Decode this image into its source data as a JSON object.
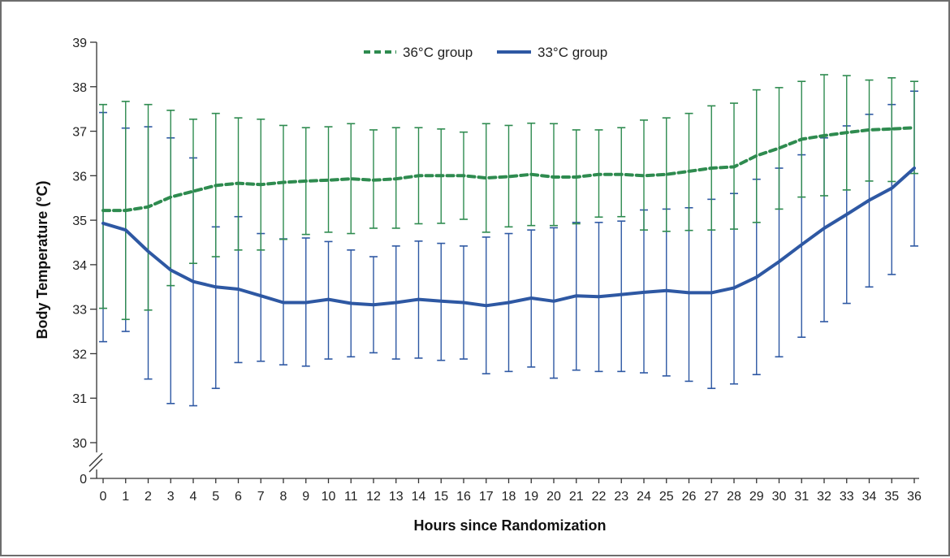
{
  "chart_data": {
    "type": "line",
    "xlabel": "Hours since Randomization",
    "ylabel": "Body Temperature (°C)",
    "x": [
      0,
      1,
      2,
      3,
      4,
      5,
      6,
      7,
      8,
      9,
      10,
      11,
      12,
      13,
      14,
      15,
      16,
      17,
      18,
      19,
      20,
      21,
      22,
      23,
      24,
      25,
      26,
      27,
      28,
      29,
      30,
      31,
      32,
      33,
      34,
      35,
      36
    ],
    "xlim": [
      0,
      36
    ],
    "ylim": [
      30,
      39
    ],
    "y_break": true,
    "y_ticks": [
      30,
      31,
      32,
      33,
      34,
      35,
      36,
      37,
      38,
      39
    ],
    "y_zero_label": "0",
    "legend_position": "top-center",
    "series": [
      {
        "name": "36°C group",
        "color": "#2e8b4f",
        "line_style": "dashed",
        "mean": [
          35.22,
          35.22,
          35.3,
          35.52,
          35.65,
          35.78,
          35.83,
          35.8,
          35.85,
          35.88,
          35.9,
          35.93,
          35.9,
          35.93,
          36.0,
          36.0,
          36.0,
          35.95,
          35.98,
          36.03,
          35.97,
          35.97,
          36.03,
          36.03,
          36.0,
          36.03,
          36.1,
          36.17,
          36.2,
          36.45,
          36.62,
          36.82,
          36.9,
          36.97,
          37.03,
          37.05,
          37.08
        ],
        "upper": [
          37.6,
          37.67,
          37.6,
          37.47,
          37.27,
          37.4,
          37.3,
          37.27,
          37.13,
          37.08,
          37.1,
          37.17,
          37.03,
          37.08,
          37.08,
          37.05,
          36.98,
          37.17,
          37.13,
          37.18,
          37.17,
          37.03,
          37.03,
          37.08,
          37.25,
          37.3,
          37.4,
          37.57,
          37.63,
          37.93,
          37.98,
          38.12,
          38.27,
          38.25,
          38.15,
          38.2,
          38.12
        ],
        "lower": [
          33.02,
          32.77,
          32.98,
          33.53,
          34.03,
          34.18,
          34.33,
          34.33,
          34.57,
          34.68,
          34.73,
          34.7,
          34.82,
          34.82,
          34.92,
          34.93,
          35.02,
          34.73,
          34.85,
          34.88,
          34.88,
          34.92,
          35.07,
          35.08,
          34.78,
          34.75,
          34.77,
          34.78,
          34.8,
          34.95,
          35.25,
          35.52,
          35.55,
          35.68,
          35.88,
          35.87,
          36.05
        ]
      },
      {
        "name": "33°C group",
        "color": "#2e58a3",
        "line_style": "solid",
        "mean": [
          34.93,
          34.78,
          34.3,
          33.88,
          33.62,
          33.5,
          33.45,
          33.3,
          33.15,
          33.15,
          33.22,
          33.13,
          33.1,
          33.15,
          33.22,
          33.18,
          33.15,
          33.08,
          33.15,
          33.25,
          33.18,
          33.3,
          33.28,
          33.33,
          33.38,
          33.42,
          33.37,
          33.37,
          33.48,
          33.72,
          34.07,
          34.45,
          34.82,
          35.13,
          35.45,
          35.72,
          36.17
        ],
        "upper": [
          37.42,
          37.07,
          37.1,
          36.85,
          36.4,
          34.85,
          35.08,
          34.7,
          34.58,
          34.6,
          34.52,
          34.33,
          34.18,
          34.42,
          34.53,
          34.48,
          34.42,
          34.62,
          34.7,
          34.78,
          34.83,
          34.95,
          34.95,
          34.98,
          35.23,
          35.25,
          35.28,
          35.47,
          35.6,
          35.92,
          36.17,
          36.47,
          36.85,
          37.12,
          37.38,
          37.6,
          37.9
        ],
        "lower": [
          32.27,
          32.5,
          31.43,
          30.88,
          30.83,
          31.22,
          31.8,
          31.83,
          31.75,
          31.72,
          31.88,
          31.93,
          32.02,
          31.88,
          31.9,
          31.85,
          31.88,
          31.55,
          31.6,
          31.7,
          31.45,
          31.63,
          31.6,
          31.6,
          31.57,
          31.5,
          31.38,
          31.22,
          31.32,
          31.53,
          31.93,
          32.37,
          32.72,
          33.13,
          33.5,
          33.78,
          34.42
        ]
      }
    ]
  }
}
